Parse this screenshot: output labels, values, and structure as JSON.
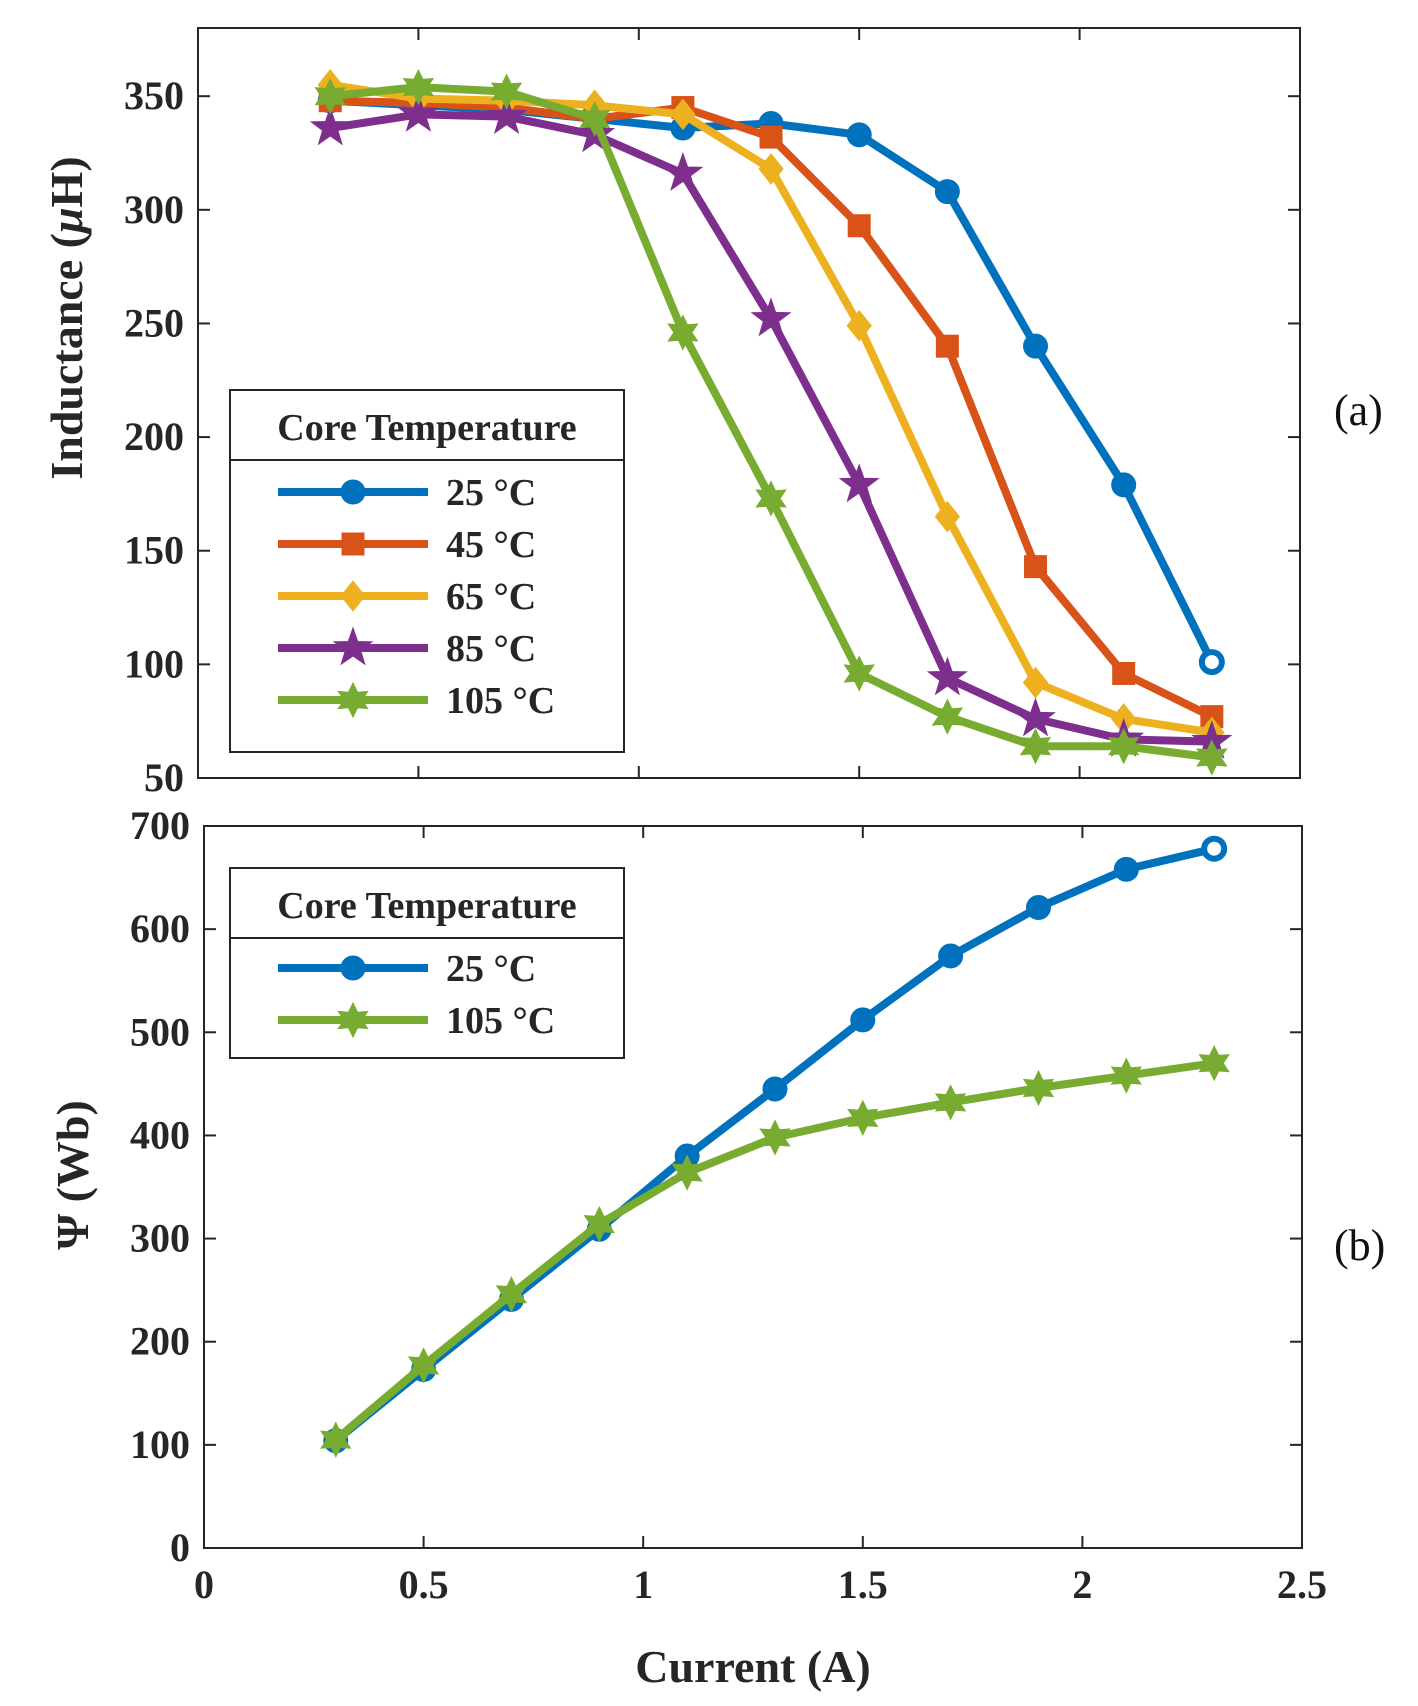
{
  "figure_labels": {
    "panel_a": "(a)",
    "panel_b": "(b)"
  },
  "chart_data": [
    {
      "id": "a",
      "type": "line",
      "title": "",
      "xlabel": "",
      "ylabel": "Inductance (μH)",
      "ylabel_parts": [
        "Inductance (",
        "μ",
        "H)"
      ],
      "xlim": [
        0,
        2.5
      ],
      "ylim": [
        50,
        380
      ],
      "xticks": [
        0,
        0.5,
        1,
        1.5,
        2,
        2.5
      ],
      "xtick_labels": [
        "",
        "",
        "",
        "",
        "",
        ""
      ],
      "yticks": [
        50,
        100,
        150,
        200,
        250,
        300,
        350
      ],
      "ytick_labels": [
        "50",
        "100",
        "150",
        "200",
        "250",
        "300",
        "350"
      ],
      "grid": false,
      "legend_title": "Core Temperature",
      "legend_position": "center-left",
      "x": [
        0.3,
        0.5,
        0.7,
        0.9,
        1.1,
        1.3,
        1.5,
        1.7,
        1.9,
        2.1,
        2.3
      ],
      "series": [
        {
          "name": "25 °C",
          "marker": "circle",
          "color": "#0072BD",
          "values": [
            348,
            346,
            344,
            340,
            336,
            338,
            333,
            308,
            240,
            179,
            101
          ]
        },
        {
          "name": "45 °C",
          "marker": "square",
          "color": "#D95319",
          "values": [
            348,
            347,
            345,
            340,
            345,
            332,
            293,
            240,
            143,
            96,
            77
          ]
        },
        {
          "name": "65 °C",
          "marker": "diamond",
          "color": "#EDB120",
          "values": [
            355,
            349,
            348,
            346,
            342,
            318,
            249,
            165,
            92,
            76,
            70
          ]
        },
        {
          "name": "85 °C",
          "marker": "pentagram",
          "color": "#7E2F8E",
          "values": [
            336,
            342,
            341,
            333,
            316,
            252,
            179,
            94,
            76,
            67,
            66
          ]
        },
        {
          "name": "105 °C",
          "marker": "hexagram",
          "color": "#77AC30",
          "values": [
            350,
            354,
            352,
            340,
            246,
            173,
            96,
            77,
            64,
            64,
            59
          ]
        }
      ]
    },
    {
      "id": "b",
      "type": "line",
      "title": "",
      "xlabel": "Current (A)",
      "ylabel": "Ψ (Wb)",
      "xlim": [
        0,
        2.5
      ],
      "ylim": [
        0,
        700
      ],
      "xticks": [
        0,
        0.5,
        1,
        1.5,
        2,
        2.5
      ],
      "xtick_labels": [
        "0",
        "0.5",
        "1",
        "1.5",
        "2",
        "2.5"
      ],
      "yticks": [
        0,
        100,
        200,
        300,
        400,
        500,
        600,
        700
      ],
      "ytick_labels": [
        "0",
        "100",
        "200",
        "300",
        "400",
        "500",
        "600",
        "700"
      ],
      "grid": false,
      "legend_title": "Core Temperature",
      "legend_position": "top-left",
      "x": [
        0.3,
        0.5,
        0.7,
        0.9,
        1.1,
        1.3,
        1.5,
        1.7,
        1.9,
        2.1,
        2.3
      ],
      "series": [
        {
          "name": "25 °C",
          "marker": "circle",
          "color": "#0072BD",
          "values": [
            104,
            173,
            241,
            309,
            380,
            445,
            512,
            574,
            621,
            658,
            678
          ]
        },
        {
          "name": "105 °C",
          "marker": "hexagram",
          "color": "#77AC30",
          "values": [
            105,
            177,
            246,
            314,
            364,
            398,
            417,
            432,
            446,
            458,
            470
          ]
        }
      ]
    }
  ]
}
